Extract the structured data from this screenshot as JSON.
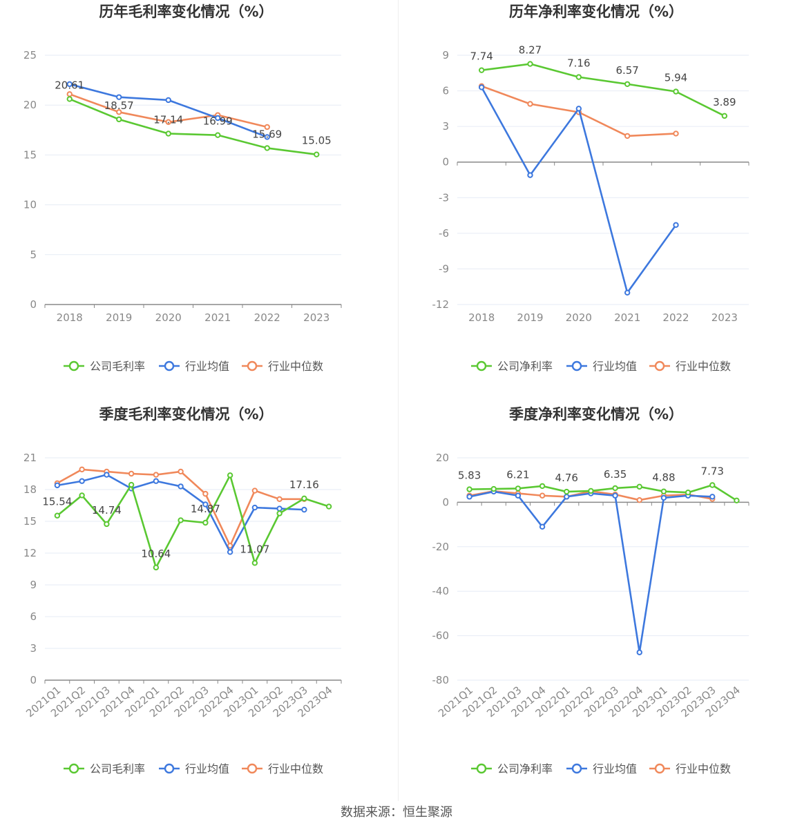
{
  "source_text": "数据来源：恒生聚源",
  "legend_labels": {
    "industry_avg": "行业均值",
    "industry_median": "行业中位数"
  },
  "colors": {
    "company": "#5ac832",
    "industry_avg": "#3d78de",
    "industry_median": "#f0885a",
    "grid": "#e6ebf5",
    "axis": "#888888",
    "tick_text": "#888888"
  },
  "chart_data": [
    {
      "type": "line",
      "title": "历年毛利率变化情况（%）",
      "categories": [
        "2018",
        "2019",
        "2020",
        "2021",
        "2022",
        "2023"
      ],
      "ylim": [
        0,
        25
      ],
      "yticks": [
        0,
        5,
        10,
        15,
        20,
        25
      ],
      "series": [
        {
          "name": "公司毛利率",
          "key": "company",
          "values": [
            20.61,
            18.57,
            17.14,
            16.99,
            15.69,
            15.05
          ],
          "labels": [
            "20.61",
            "18.57",
            "17.14",
            "16.99",
            "15.69",
            "15.05"
          ]
        },
        {
          "name": "行业均值",
          "key": "industry_avg",
          "values": [
            22.1,
            20.8,
            20.5,
            18.7,
            16.8,
            null
          ]
        },
        {
          "name": "行业中位数",
          "key": "industry_median",
          "values": [
            21.1,
            19.3,
            18.3,
            19.0,
            17.8,
            null
          ]
        }
      ]
    },
    {
      "type": "line",
      "title": "历年净利率变化情况（%）",
      "categories": [
        "2018",
        "2019",
        "2020",
        "2021",
        "2022",
        "2023"
      ],
      "ylim": [
        -12,
        9
      ],
      "yticks": [
        -12,
        -9,
        -6,
        -3,
        0,
        3,
        6,
        9
      ],
      "series": [
        {
          "name": "公司净利率",
          "key": "company",
          "values": [
            7.74,
            8.27,
            7.16,
            6.57,
            5.94,
            3.89
          ],
          "labels": [
            "7.74",
            "8.27",
            "7.16",
            "6.57",
            "5.94",
            "3.89"
          ]
        },
        {
          "name": "行业均值",
          "key": "industry_avg",
          "values": [
            6.3,
            -1.1,
            4.5,
            -11.0,
            -5.3,
            null
          ]
        },
        {
          "name": "行业中位数",
          "key": "industry_median",
          "values": [
            6.4,
            4.9,
            4.2,
            2.2,
            2.4,
            null
          ]
        }
      ]
    },
    {
      "type": "line",
      "title": "季度毛利率变化情况（%）",
      "categories": [
        "2021Q1",
        "2021Q2",
        "2021Q3",
        "2021Q4",
        "2022Q1",
        "2022Q2",
        "2022Q3",
        "2022Q4",
        "2023Q1",
        "2023Q2",
        "2023Q3",
        "2023Q4"
      ],
      "ylim": [
        0,
        21
      ],
      "yticks": [
        0,
        3,
        6,
        9,
        12,
        15,
        18,
        21
      ],
      "series": [
        {
          "name": "公司毛利率",
          "key": "company",
          "values": [
            15.54,
            17.45,
            14.74,
            18.45,
            10.64,
            15.1,
            14.87,
            19.35,
            11.07,
            15.75,
            17.16,
            16.4
          ],
          "labels": [
            "15.54",
            "",
            "14.74",
            "",
            "10.64",
            "",
            "14.87",
            "",
            "11.07",
            "",
            "17.16",
            ""
          ]
        },
        {
          "name": "行业均值",
          "key": "industry_avg",
          "values": [
            18.4,
            18.8,
            19.4,
            18.1,
            18.8,
            18.3,
            16.6,
            12.1,
            16.3,
            16.2,
            16.1,
            null
          ]
        },
        {
          "name": "行业中位数",
          "key": "industry_median",
          "values": [
            18.6,
            19.9,
            19.7,
            19.5,
            19.4,
            19.7,
            17.6,
            12.7,
            17.9,
            17.1,
            17.1,
            null
          ]
        }
      ]
    },
    {
      "type": "line",
      "title": "季度净利率变化情况（%）",
      "categories": [
        "2021Q1",
        "2021Q2",
        "2021Q3",
        "2021Q4",
        "2022Q1",
        "2022Q2",
        "2022Q3",
        "2022Q4",
        "2023Q1",
        "2023Q2",
        "2023Q3",
        "2023Q4"
      ],
      "ylim": [
        -80,
        20
      ],
      "yticks": [
        -80,
        -60,
        -40,
        -20,
        0,
        20
      ],
      "series": [
        {
          "name": "公司净利率",
          "key": "company",
          "values": [
            5.83,
            6.0,
            6.21,
            7.3,
            4.76,
            5.1,
            6.35,
            7.0,
            4.88,
            4.4,
            7.73,
            0.8
          ],
          "labels": [
            "5.83",
            "",
            "6.21",
            "",
            "4.76",
            "",
            "6.35",
            "",
            "4.88",
            "",
            "7.73",
            ""
          ]
        },
        {
          "name": "行业均值",
          "key": "industry_avg",
          "values": [
            2.5,
            4.8,
            3.0,
            -11.0,
            2.5,
            4.0,
            3.0,
            -67.5,
            2.0,
            3.0,
            2.5,
            null
          ]
        },
        {
          "name": "行业中位数",
          "key": "industry_median",
          "values": [
            3.0,
            5.0,
            4.0,
            3.0,
            2.5,
            5.0,
            3.5,
            1.0,
            3.0,
            3.5,
            1.5,
            null
          ]
        }
      ]
    }
  ]
}
